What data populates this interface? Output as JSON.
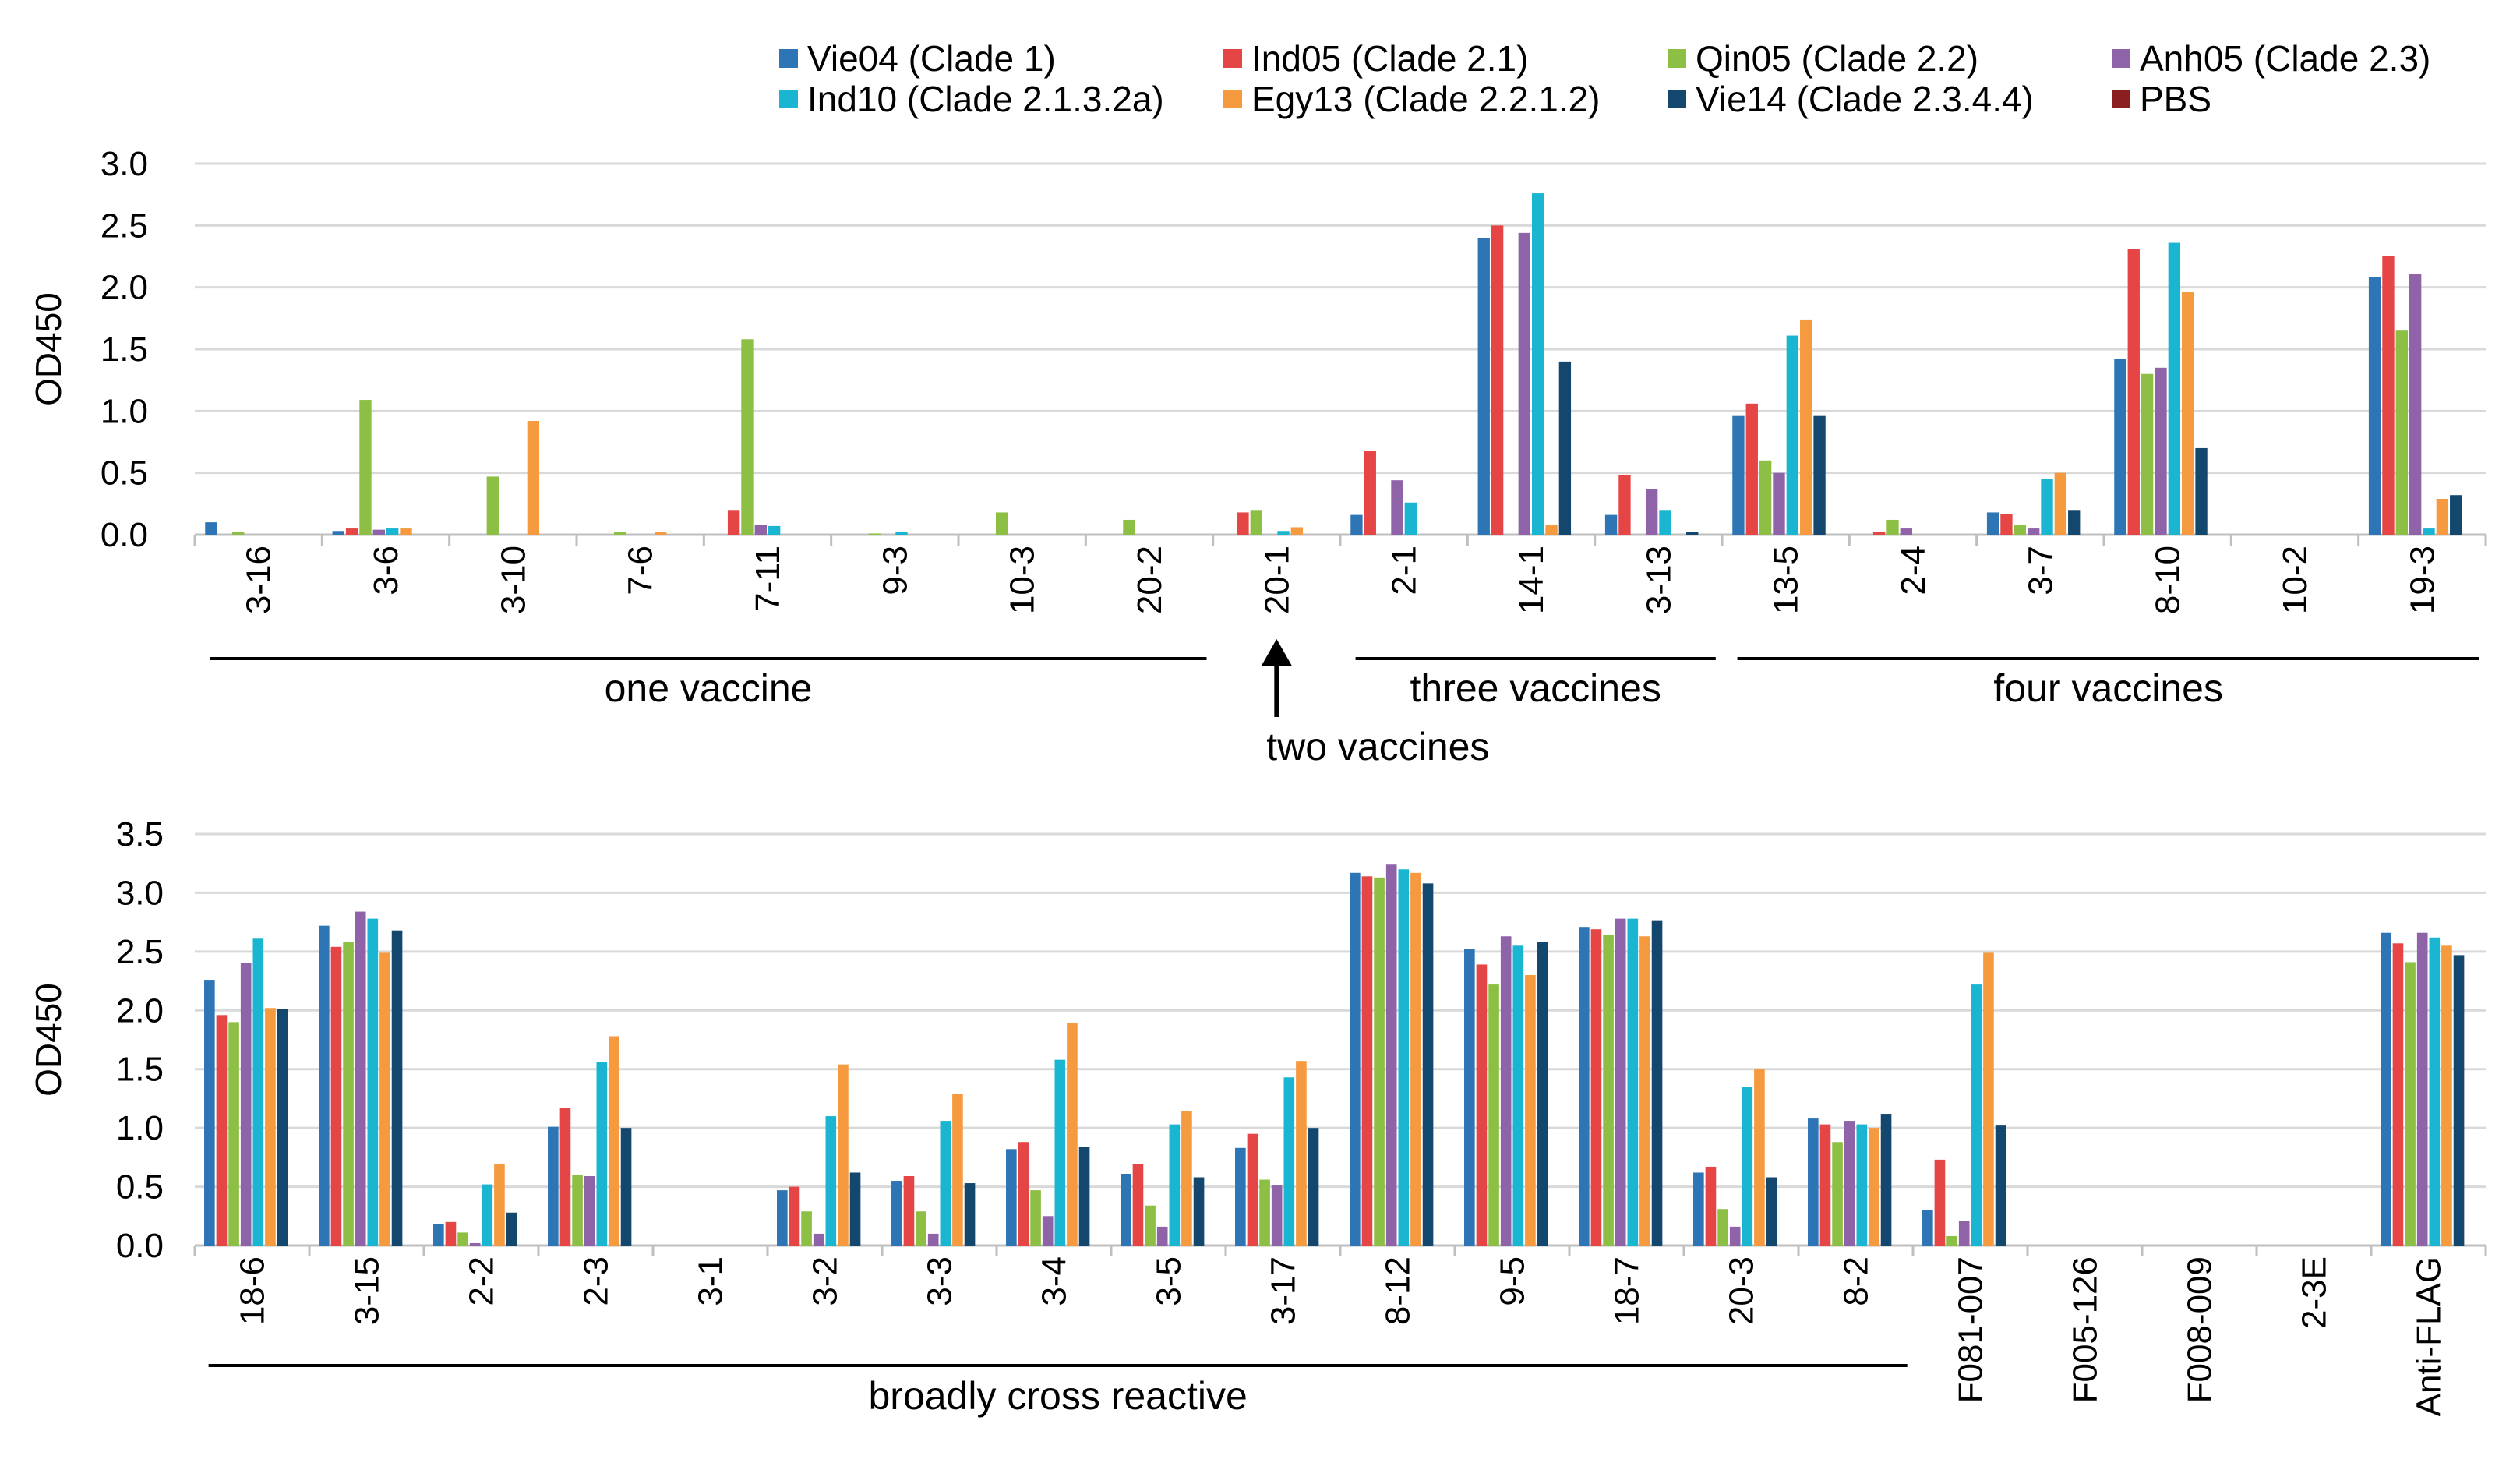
{
  "chart_data": [
    {
      "type": "bar",
      "ylabel": "OD450",
      "ylim": [
        0,
        3.0
      ],
      "yticks": [
        "0.0",
        "0.5",
        "1.0",
        "1.5",
        "2.0",
        "2.5",
        "3.0"
      ],
      "grid": true,
      "categories": [
        "3-16",
        "3-6",
        "3-10",
        "7-6",
        "7-11",
        "9-3",
        "10-3",
        "20-2",
        "20-1",
        "2-1",
        "14-1",
        "3-13",
        "13-5",
        "2-4",
        "3-7",
        "8-10",
        "10-2",
        "19-3"
      ],
      "series": [
        {
          "name": "Vie04 (Clade 1)",
          "values": [
            0.1,
            0.03,
            0,
            0,
            0,
            0,
            0,
            0,
            0,
            0.16,
            2.4,
            0.16,
            0.96,
            0,
            0.18,
            1.42,
            0,
            2.08
          ]
        },
        {
          "name": "Ind05 (Clade 2.1)",
          "values": [
            0,
            0.05,
            0,
            0,
            0.2,
            0,
            0,
            0,
            0.18,
            0.68,
            2.5,
            0.48,
            1.06,
            0.02,
            0.17,
            2.31,
            0,
            2.25
          ]
        },
        {
          "name": "Qin05 (Clade 2.2)",
          "values": [
            0.02,
            1.09,
            0.47,
            0.02,
            1.58,
            0.01,
            0.18,
            0.12,
            0.2,
            0,
            0,
            0,
            0.6,
            0.12,
            0.08,
            1.3,
            0,
            1.65
          ]
        },
        {
          "name": "Anh05 (Clade 2.3)",
          "values": [
            0,
            0.04,
            0,
            0,
            0.08,
            0,
            0,
            0,
            0,
            0.44,
            2.44,
            0.37,
            0.5,
            0.05,
            0.05,
            1.35,
            0,
            2.11
          ]
        },
        {
          "name": "Ind10 (Clade 2.1.3.2a)",
          "values": [
            0,
            0.05,
            0,
            0,
            0.07,
            0.02,
            0,
            0,
            0.03,
            0.26,
            2.76,
            0.2,
            1.61,
            0,
            0.45,
            2.36,
            0,
            0.05
          ]
        },
        {
          "name": "Egy13 (Clade 2.2.1.2)",
          "values": [
            0,
            0.05,
            0.92,
            0.02,
            0,
            0,
            0,
            0,
            0.06,
            0,
            0.08,
            0,
            1.74,
            0,
            0.5,
            1.96,
            0,
            0.29
          ]
        },
        {
          "name": "Vie14 (Clade 2.3.4.4)",
          "values": [
            0,
            0,
            0,
            0,
            0,
            0,
            0,
            0,
            0,
            0,
            1.4,
            0.02,
            0.96,
            0,
            0.2,
            0.7,
            0,
            0.32
          ]
        },
        {
          "name": "PBS",
          "values": [
            0,
            0,
            0,
            0,
            0,
            0,
            0,
            0,
            0,
            0,
            0,
            0,
            0,
            0,
            0,
            0,
            0,
            0
          ]
        }
      ],
      "groups": [
        {
          "label": "one vaccine",
          "from": 0,
          "to": 7
        },
        {
          "label": "three vaccines",
          "from": 9,
          "to": 11
        },
        {
          "label": "four vaccines",
          "from": 12,
          "to": 17
        }
      ],
      "annotation": {
        "label": "two vaccines",
        "category": 8
      }
    },
    {
      "type": "bar",
      "ylabel": "OD450",
      "ylim": [
        0,
        3.5
      ],
      "yticks": [
        "0.0",
        "0.5",
        "1.0",
        "1.5",
        "2.0",
        "2.5",
        "3.0",
        "3.5"
      ],
      "grid": true,
      "categories": [
        "18-6",
        "3-15",
        "2-2",
        "2-3",
        "3-1",
        "3-2",
        "3-3",
        "3-4",
        "3-5",
        "3-17",
        "8-12",
        "9-5",
        "18-7",
        "20-3",
        "8-2",
        "F081-007",
        "F005-126",
        "F008-009",
        "2-3E",
        "Anti-FLAG"
      ],
      "series": [
        {
          "name": "Vie04 (Clade 1)",
          "values": [
            2.26,
            2.72,
            0.18,
            1.01,
            0,
            0.47,
            0.55,
            0.82,
            0.61,
            0.83,
            3.17,
            2.52,
            2.71,
            0.62,
            1.08,
            0.3,
            0,
            0,
            0,
            2.66
          ]
        },
        {
          "name": "Ind05 (Clade 2.1)",
          "values": [
            1.96,
            2.54,
            0.2,
            1.17,
            0,
            0.5,
            0.59,
            0.88,
            0.69,
            0.95,
            3.14,
            2.39,
            2.69,
            0.67,
            1.03,
            0.73,
            0,
            0,
            0,
            2.57
          ]
        },
        {
          "name": "Qin05 (Clade 2.2)",
          "values": [
            1.9,
            2.58,
            0.11,
            0.6,
            0,
            0.29,
            0.29,
            0.47,
            0.34,
            0.56,
            3.13,
            2.22,
            2.64,
            0.31,
            0.88,
            0.08,
            0,
            0,
            0,
            2.41
          ]
        },
        {
          "name": "Anh05 (Clade 2.3)",
          "values": [
            2.4,
            2.84,
            0.02,
            0.59,
            0,
            0.1,
            0.1,
            0.25,
            0.16,
            0.51,
            3.24,
            2.63,
            2.78,
            0.16,
            1.06,
            0.21,
            0,
            0,
            0,
            2.66
          ]
        },
        {
          "name": "Ind10 (Clade 2.1.3.2a)",
          "values": [
            2.61,
            2.78,
            0.52,
            1.56,
            0,
            1.1,
            1.06,
            1.58,
            1.03,
            1.43,
            3.2,
            2.55,
            2.78,
            1.35,
            1.03,
            2.22,
            0,
            0,
            0,
            2.62
          ]
        },
        {
          "name": "Egy13 (Clade 2.2.1.2)",
          "values": [
            2.02,
            2.49,
            0.69,
            1.78,
            0,
            1.54,
            1.29,
            1.89,
            1.14,
            1.57,
            3.17,
            2.3,
            2.63,
            1.5,
            1.0,
            2.49,
            0,
            0,
            0,
            2.55
          ]
        },
        {
          "name": "Vie14 (Clade 2.3.4.4)",
          "values": [
            2.01,
            2.68,
            0.28,
            1.0,
            0,
            0.62,
            0.53,
            0.84,
            0.58,
            1.0,
            3.08,
            2.58,
            2.76,
            0.58,
            1.12,
            1.02,
            0,
            0,
            0,
            2.47
          ]
        },
        {
          "name": "PBS",
          "values": [
            0,
            0,
            0,
            0,
            0,
            0,
            0,
            0,
            0,
            0,
            0,
            0,
            0,
            0,
            0,
            0,
            0,
            0,
            0,
            0
          ]
        }
      ],
      "groups": [
        {
          "label": "broadly cross reactive",
          "from": 0,
          "to": 14
        }
      ]
    }
  ],
  "legend": {
    "entries": [
      {
        "label": "Vie04 (Clade 1)",
        "color": "#2e75b6"
      },
      {
        "label": "Ind05 (Clade 2.1)",
        "color": "#e64545"
      },
      {
        "label": "Qin05 (Clade 2.2)",
        "color": "#8cbf44"
      },
      {
        "label": "Anh05 (Clade 2.3)",
        "color": "#8e63a8"
      },
      {
        "label": "Ind10 (Clade 2.1.3.2a)",
        "color": "#1ab6d1"
      },
      {
        "label": "Egy13 (Clade 2.2.1.2)",
        "color": "#f59a3e"
      },
      {
        "label": "Vie14 (Clade 2.3.4.4)",
        "color": "#14476e"
      },
      {
        "label": "PBS",
        "color": "#8b1f1f"
      }
    ]
  }
}
